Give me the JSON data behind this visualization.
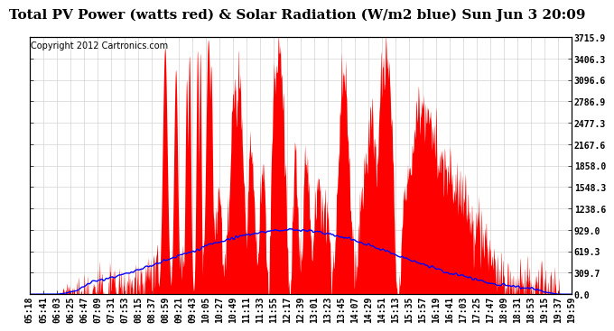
{
  "title": "Total PV Power (watts red) & Solar Radiation (W/m2 blue) Sun Jun 3 20:09",
  "copyright": "Copyright 2012 Cartronics.com",
  "ylabel_right_ticks": [
    0.0,
    309.7,
    619.3,
    929.0,
    1238.6,
    1548.3,
    1858.0,
    2167.6,
    2477.3,
    2786.9,
    3096.6,
    3406.3,
    3715.9
  ],
  "ymax": 3715.9,
  "ymin": 0.0,
  "time_start_min": 318,
  "time_end_min": 1199,
  "pv_color": "#FF0000",
  "solar_color": "#0000FF",
  "bg_color": "#FFFFFF",
  "grid_color": "#C8C8C8",
  "title_fontsize": 11,
  "copyright_fontsize": 7,
  "tick_fontsize": 7,
  "x_tick_labels": [
    "05:18",
    "05:41",
    "06:03",
    "06:25",
    "06:47",
    "07:09",
    "07:31",
    "07:53",
    "08:15",
    "08:37",
    "08:59",
    "09:21",
    "09:43",
    "10:05",
    "10:27",
    "10:49",
    "11:11",
    "11:33",
    "11:55",
    "12:17",
    "12:39",
    "13:01",
    "13:23",
    "13:45",
    "14:07",
    "14:29",
    "14:51",
    "15:13",
    "15:35",
    "15:57",
    "16:19",
    "16:41",
    "17:03",
    "17:25",
    "17:47",
    "18:09",
    "18:31",
    "18:53",
    "19:15",
    "19:37",
    "19:59"
  ],
  "x_tick_mins": [
    318,
    341,
    363,
    385,
    407,
    429,
    451,
    473,
    495,
    517,
    539,
    561,
    583,
    605,
    627,
    649,
    671,
    693,
    715,
    737,
    759,
    781,
    803,
    825,
    847,
    869,
    891,
    913,
    935,
    957,
    979,
    1001,
    1023,
    1045,
    1067,
    1089,
    1111,
    1133,
    1155,
    1177,
    1199
  ]
}
